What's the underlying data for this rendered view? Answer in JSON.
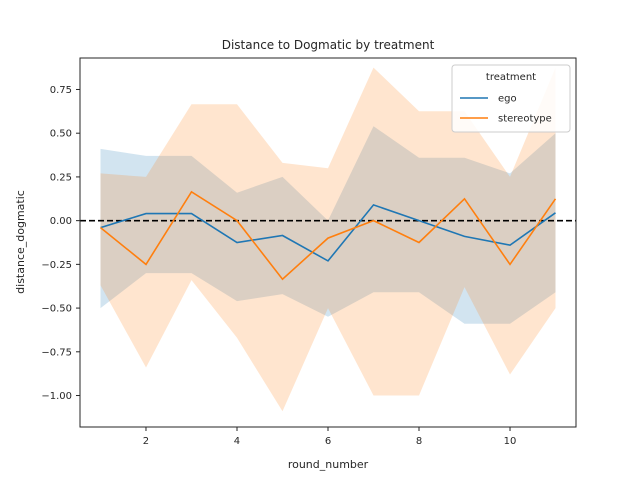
{
  "chart_data": {
    "type": "line",
    "title": "Distance to Dogmatic by treatment",
    "xlabel": "round_number",
    "ylabel": "distance_dogmatic",
    "xlim": [
      0.55,
      11.45
    ],
    "ylim": [
      -1.18,
      0.93
    ],
    "xticks": [
      2,
      4,
      6,
      8,
      10
    ],
    "yticks": [
      0.75,
      0.5,
      0.25,
      0.0,
      -0.25,
      -0.5,
      -0.75,
      -1.0
    ],
    "ytick_labels": [
      "0.75",
      "0.50",
      "0.25",
      "0.00",
      "−0.25",
      "−0.50",
      "−0.75",
      "−1.00"
    ],
    "grid": false,
    "reference_line": {
      "y": 0,
      "style": "dashed",
      "color": "#000000"
    },
    "legend": {
      "title": "treatment",
      "position": "top-right"
    },
    "x": [
      1,
      2,
      3,
      4,
      5,
      6,
      7,
      8,
      9,
      10,
      11
    ],
    "series": [
      {
        "name": "ego",
        "color": "#1f77b4",
        "values": [
          -0.04,
          0.04,
          0.04,
          -0.125,
          -0.085,
          -0.23,
          0.09,
          0.0,
          -0.09,
          -0.14,
          0.045
        ],
        "ci_low": [
          -0.5,
          -0.3,
          -0.3,
          -0.46,
          -0.42,
          -0.55,
          -0.41,
          -0.41,
          -0.59,
          -0.59,
          -0.41
        ],
        "ci_high": [
          0.41,
          0.37,
          0.37,
          0.16,
          0.25,
          0.0,
          0.54,
          0.36,
          0.36,
          0.27,
          0.5
        ]
      },
      {
        "name": "stereotype",
        "color": "#ff7f0e",
        "values": [
          -0.04,
          -0.25,
          0.165,
          0.0,
          -0.335,
          -0.1,
          0.0,
          -0.125,
          0.125,
          -0.25,
          0.125
        ],
        "ci_low": [
          -0.37,
          -0.84,
          -0.34,
          -0.67,
          -1.09,
          -0.5,
          -1.0,
          -1.0,
          -0.38,
          -0.88,
          -0.5
        ],
        "ci_high": [
          0.27,
          0.25,
          0.665,
          0.665,
          0.33,
          0.3,
          0.875,
          0.625,
          0.625,
          0.25,
          0.875
        ]
      }
    ]
  }
}
